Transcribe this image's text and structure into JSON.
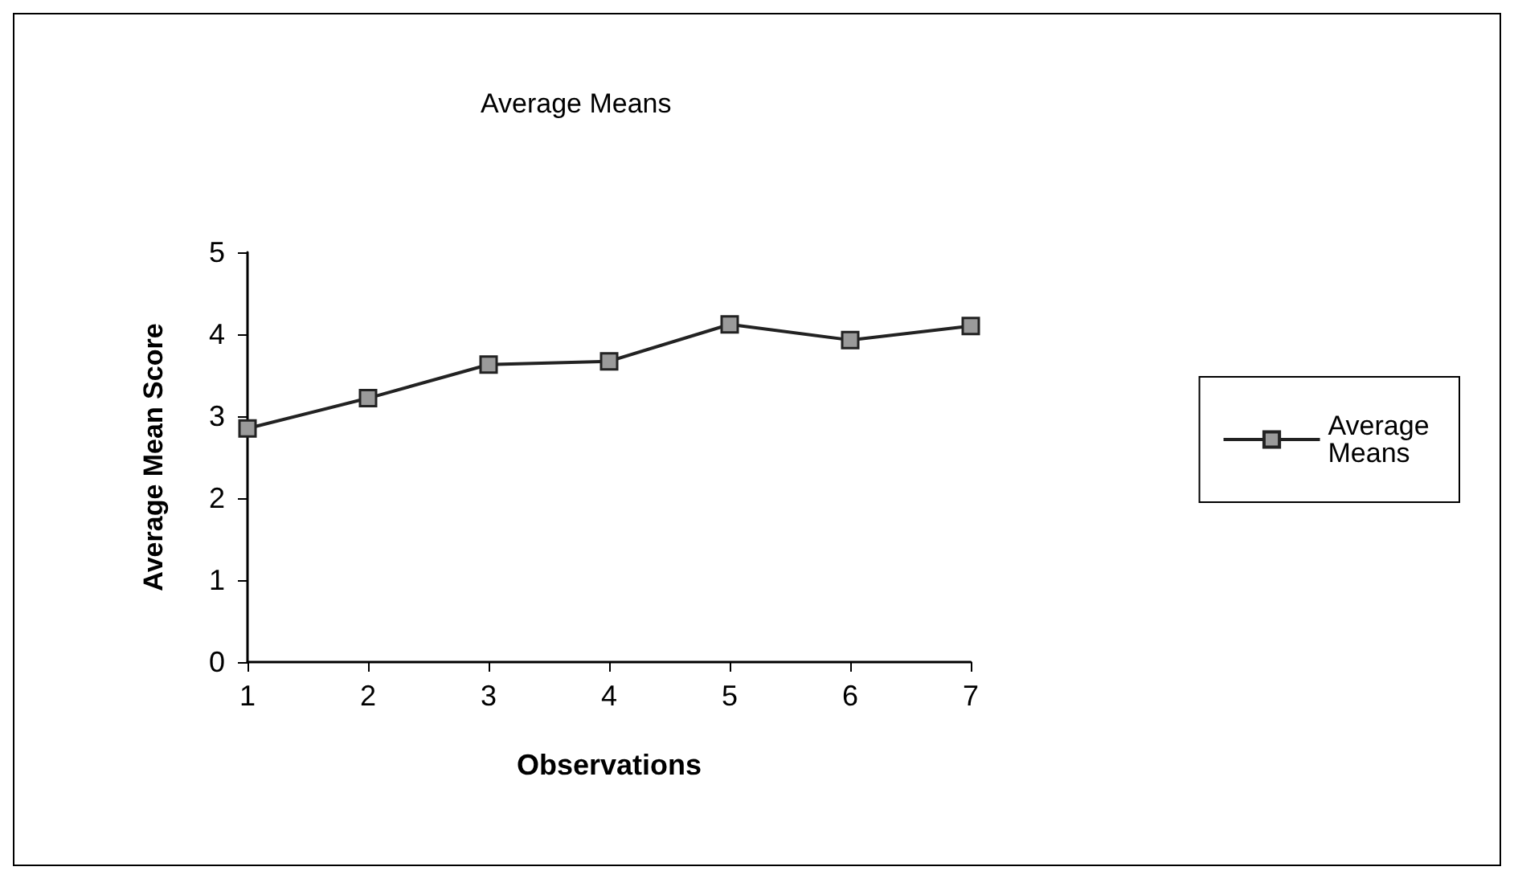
{
  "chart_data": {
    "type": "line",
    "title": "Average Means",
    "xlabel": "Observations",
    "ylabel": "Average Mean Score",
    "x": [
      1,
      2,
      3,
      4,
      5,
      6,
      7
    ],
    "series": [
      {
        "name": "Average Means",
        "color": "#222222",
        "values": [
          2.85,
          3.22,
          3.63,
          3.67,
          4.12,
          3.93,
          4.1
        ]
      }
    ],
    "xlim": [
      1,
      7
    ],
    "xticks": [
      1,
      2,
      3,
      4,
      5,
      6,
      7
    ],
    "ylim": [
      0,
      5
    ],
    "yticks": [
      0,
      1,
      2,
      3,
      4,
      5
    ],
    "grid": false,
    "legend": "right",
    "marker": "square",
    "line_style": "solid"
  }
}
